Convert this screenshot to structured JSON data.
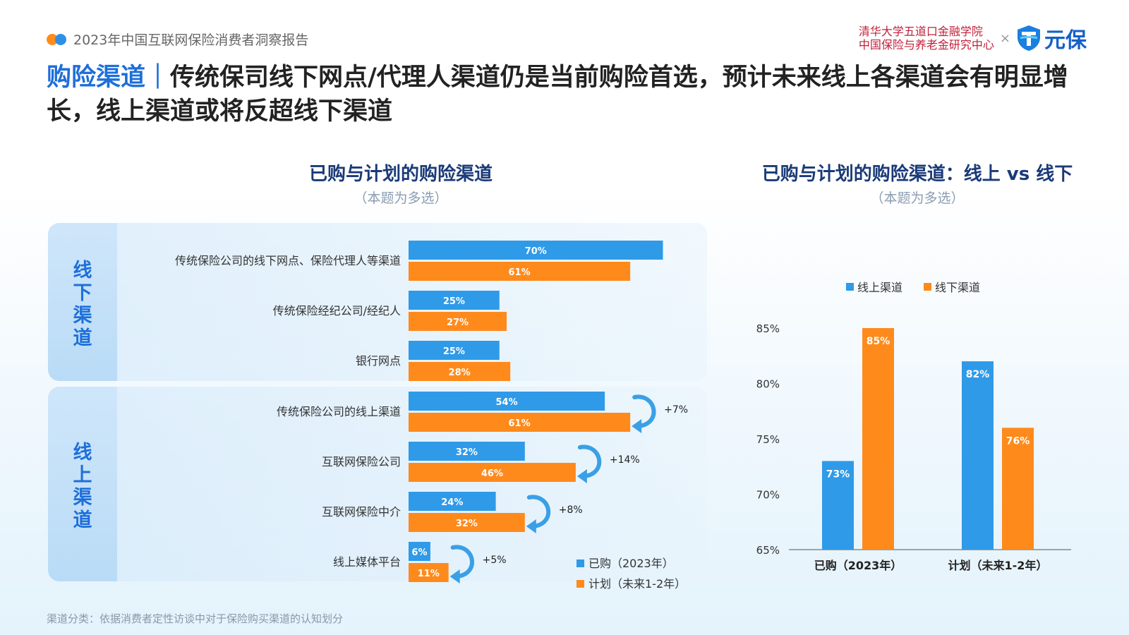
{
  "header": {
    "report_title": "2023年中国互联网保险消费者洞察报告",
    "brand_line1": "清华大学五道口金融学院",
    "brand_line2": "中国保险与养老金研究中心",
    "brand_separator": "×",
    "brand_name": "元保"
  },
  "headline": {
    "highlight": "购险渠道｜",
    "text": "传统保司线下网点/代理人渠道仍是当前购险首选，预计未来线上各渠道会有明显增长，线上渠道或将反超线下渠道"
  },
  "groups": {
    "offline_label": [
      "线",
      "下",
      "渠",
      "道"
    ],
    "online_label": [
      "线",
      "上",
      "渠",
      "道"
    ]
  },
  "footnote": "渠道分类：依据消费者定性访谈中对于保险购买渠道的认知划分",
  "colors": {
    "blue": "#2f9ae8",
    "orange": "#ff8a1c",
    "arrow": "#3aa0e6"
  },
  "chart_data": [
    {
      "type": "bar",
      "orientation": "horizontal",
      "title": "已购与计划的购险渠道",
      "subtitle": "（本题为多选）",
      "categories": [
        "传统保险公司的线下网点、保险代理人等渠道",
        "传统保险经纪公司/经纪人",
        "银行网点",
        "传统保险公司的线上渠道",
        "互联网保险公司",
        "互联网保险中介",
        "线上媒体平台"
      ],
      "series": [
        {
          "name": "已购（2023年）",
          "values": [
            70,
            25,
            25,
            54,
            32,
            24,
            6
          ],
          "labels": [
            "70%",
            "25%",
            "25%",
            "54%",
            "32%",
            "24%",
            "6%"
          ]
        },
        {
          "name": "计划（未来1-2年）",
          "values": [
            61,
            27,
            28,
            61,
            46,
            32,
            11
          ],
          "labels": [
            "61%",
            "27%",
            "28%",
            "61%",
            "46%",
            "32%",
            "11%"
          ]
        }
      ],
      "annotations": [
        {
          "category": "传统保险公司的线上渠道",
          "text": "+7%"
        },
        {
          "category": "互联网保险公司",
          "text": "+14%"
        },
        {
          "category": "互联网保险中介",
          "text": "+8%"
        },
        {
          "category": "线上媒体平台",
          "text": "+5%"
        }
      ],
      "xlim": [
        0,
        100
      ],
      "legend": "bottom-right"
    },
    {
      "type": "bar",
      "title": "已购与计划的购险渠道：线上 vs 线下",
      "subtitle": "（本题为多选）",
      "categories": [
        "已购（2023年）",
        "计划（未来1-2年）"
      ],
      "series": [
        {
          "name": "线上渠道",
          "values": [
            73,
            82
          ],
          "labels": [
            "73%",
            "82%"
          ]
        },
        {
          "name": "线下渠道",
          "values": [
            85,
            76
          ],
          "labels": [
            "85%",
            "76%"
          ]
        }
      ],
      "yticks": [
        "85%",
        "80%",
        "75%",
        "70%",
        "65%"
      ],
      "ylim": [
        65,
        85
      ],
      "legend": "top"
    }
  ]
}
